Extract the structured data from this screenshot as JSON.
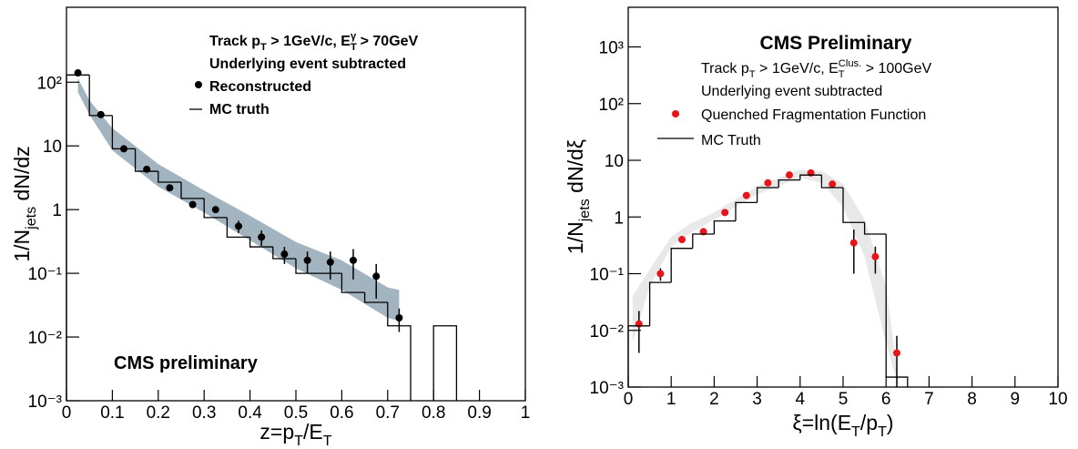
{
  "chart_data": [
    {
      "type": "errorbar",
      "log_y": true,
      "xlabel": {
        "parts": [
          {
            "text": "z=p"
          },
          {
            "text": "T",
            "sub": true
          },
          {
            "text": "/E"
          },
          {
            "text": "T",
            "sub": true
          }
        ]
      },
      "ylabel": {
        "parts": [
          {
            "text": "1/N"
          },
          {
            "text": "jets",
            "sub": true
          },
          {
            "text": " dN/dz"
          }
        ]
      },
      "xlim": [
        0,
        1
      ],
      "xticks": [
        0,
        0.1,
        0.2,
        0.3,
        0.4,
        0.5,
        0.6,
        0.7,
        0.8,
        0.9,
        1
      ],
      "ylim": [
        0.001,
        1500
      ],
      "yticks": [
        {
          "value": 0.001,
          "label": "10⁻³"
        },
        {
          "value": 0.01,
          "label": "10⁻²"
        },
        {
          "value": 0.1,
          "label": "10⁻¹"
        },
        1,
        10,
        {
          "value": 100,
          "label": "10²"
        }
      ],
      "band": {
        "color": "#a3b4c1",
        "x": [
          0.025,
          0.05,
          0.1,
          0.2,
          0.3,
          0.4,
          0.5,
          0.6,
          0.7,
          0.725
        ],
        "upper": [
          115,
          52,
          19,
          5.2,
          2.0,
          0.8,
          0.31,
          0.16,
          0.06,
          0.055
        ],
        "lower": [
          70,
          31,
          8.5,
          2.3,
          0.9,
          0.33,
          0.12,
          0.055,
          0.02,
          0.018
        ]
      },
      "legend_bold": true,
      "series": [
        {
          "name": "Reconstructed",
          "style": "points",
          "color": "#000000",
          "x": [
            0.025,
            0.075,
            0.125,
            0.175,
            0.225,
            0.275,
            0.325,
            0.375,
            0.425,
            0.475,
            0.525,
            0.575,
            0.625,
            0.675,
            0.725
          ],
          "values": [
            140,
            31,
            9,
            4.3,
            2.2,
            1.2,
            1.0,
            0.55,
            0.37,
            0.2,
            0.16,
            0.15,
            0.16,
            0.09,
            0.02
          ],
          "errors": [
            5,
            2,
            0.6,
            0.3,
            0.2,
            0.12,
            0.12,
            0.12,
            0.1,
            0.06,
            0.06,
            0.07,
            0.08,
            0.05,
            0.008
          ]
        },
        {
          "name": "MC truth",
          "style": "step",
          "color": "#000000",
          "bins": [
            0,
            0.05,
            0.1,
            0.15,
            0.2,
            0.25,
            0.3,
            0.35,
            0.4,
            0.45,
            0.5,
            0.55,
            0.6,
            0.65,
            0.7,
            0.75,
            0.8,
            0.85
          ],
          "values": [
            130,
            30,
            9,
            4,
            2.7,
            1.5,
            0.75,
            0.37,
            0.26,
            0.17,
            0.1,
            0.1,
            0.05,
            0.035,
            0.015,
            null,
            0.015
          ]
        }
      ],
      "annotations": [
        {
          "bold": true,
          "parts": [
            {
              "text": "Track p"
            },
            {
              "text": "T",
              "sub": true
            },
            {
              "text": " > 1GeV/c, E"
            },
            {
              "text": "T",
              "sub": true
            },
            {
              "text": "γ",
              "sup": true
            },
            {
              "text": " > 70GeV"
            }
          ]
        },
        {
          "bold": true,
          "parts": [
            {
              "text": "Underlying event subtracted"
            }
          ]
        },
        {
          "bold": true,
          "parts": [
            {
              "text": "CMS preliminary"
            }
          ]
        }
      ]
    },
    {
      "type": "errorbar",
      "log_y": true,
      "xlabel": {
        "parts": [
          {
            "text": "ξ=ln(E"
          },
          {
            "text": "T",
            "sub": true
          },
          {
            "text": "/p"
          },
          {
            "text": "T",
            "sub": true
          },
          {
            "text": ")"
          }
        ]
      },
      "ylabel": {
        "parts": [
          {
            "text": "1/N"
          },
          {
            "text": "jets",
            "sub": true
          },
          {
            "text": " dN/dξ"
          }
        ]
      },
      "xlim": [
        0,
        10
      ],
      "xticks": [
        0,
        1,
        2,
        3,
        4,
        5,
        6,
        7,
        8,
        9,
        10
      ],
      "ylim": [
        0.001,
        5000
      ],
      "yticks": [
        {
          "value": 0.001,
          "label": "10⁻³"
        },
        {
          "value": 0.01,
          "label": "10⁻²"
        },
        {
          "value": 0.1,
          "label": "10⁻¹"
        },
        1,
        10,
        {
          "value": 100,
          "label": "10²"
        },
        {
          "value": 1000,
          "label": "10³"
        }
      ],
      "band": {
        "color": "#e8e8e8",
        "x": [
          0.1,
          0.5,
          1,
          1.5,
          2,
          3,
          4,
          4.5,
          5,
          5.5,
          6,
          6.3
        ],
        "upper": [
          0.04,
          0.12,
          0.45,
          0.8,
          1.2,
          3.5,
          6.8,
          6.5,
          3.8,
          0.9,
          0.06,
          0.0012
        ],
        "lower": [
          0.006,
          0.06,
          0.3,
          0.55,
          0.9,
          2.5,
          5,
          4,
          1.5,
          0.2,
          0.006,
          0.001
        ]
      },
      "legend_bold": false,
      "series": [
        {
          "name": "Quenched Fragmentation Function",
          "style": "points",
          "color": "#e8141a",
          "x": [
            0.25,
            0.75,
            1.25,
            1.75,
            2.25,
            2.75,
            3.25,
            3.75,
            4.25,
            4.75,
            5.25,
            5.75,
            6.25
          ],
          "values": [
            0.013,
            0.1,
            0.4,
            0.55,
            1.2,
            2.4,
            4,
            5.5,
            6,
            3.8,
            0.35,
            0.2,
            0.004
          ],
          "errors": [
            0.009,
            0.025,
            0.05,
            0.05,
            0.1,
            0.2,
            0.3,
            0.4,
            0.4,
            0.4,
            0.25,
            0.1,
            0.004
          ]
        },
        {
          "name": "MC Truth",
          "style": "step",
          "color": "#000000",
          "bins": [
            0,
            0.5,
            1,
            1.5,
            2,
            2.5,
            3,
            3.5,
            4,
            4.5,
            5,
            5.5,
            6,
            6.5
          ],
          "values": [
            0.012,
            0.07,
            0.28,
            0.5,
            0.85,
            1.8,
            3.3,
            4.5,
            5.5,
            3.3,
            0.8,
            0.5,
            0.0015
          ]
        }
      ],
      "annotations": [
        {
          "bold": true,
          "parts": [
            {
              "text": "CMS Preliminary"
            }
          ]
        },
        {
          "bold": false,
          "parts": [
            {
              "text": "Track p"
            },
            {
              "text": "T",
              "sub": true
            },
            {
              "text": " > 1GeV/c, E"
            },
            {
              "text": "T",
              "sub": true
            },
            {
              "text": "Clus.",
              "sup": true
            },
            {
              "text": " > 100GeV"
            }
          ]
        },
        {
          "bold": false,
          "parts": [
            {
              "text": "Underlying event subtracted"
            }
          ]
        }
      ]
    }
  ]
}
